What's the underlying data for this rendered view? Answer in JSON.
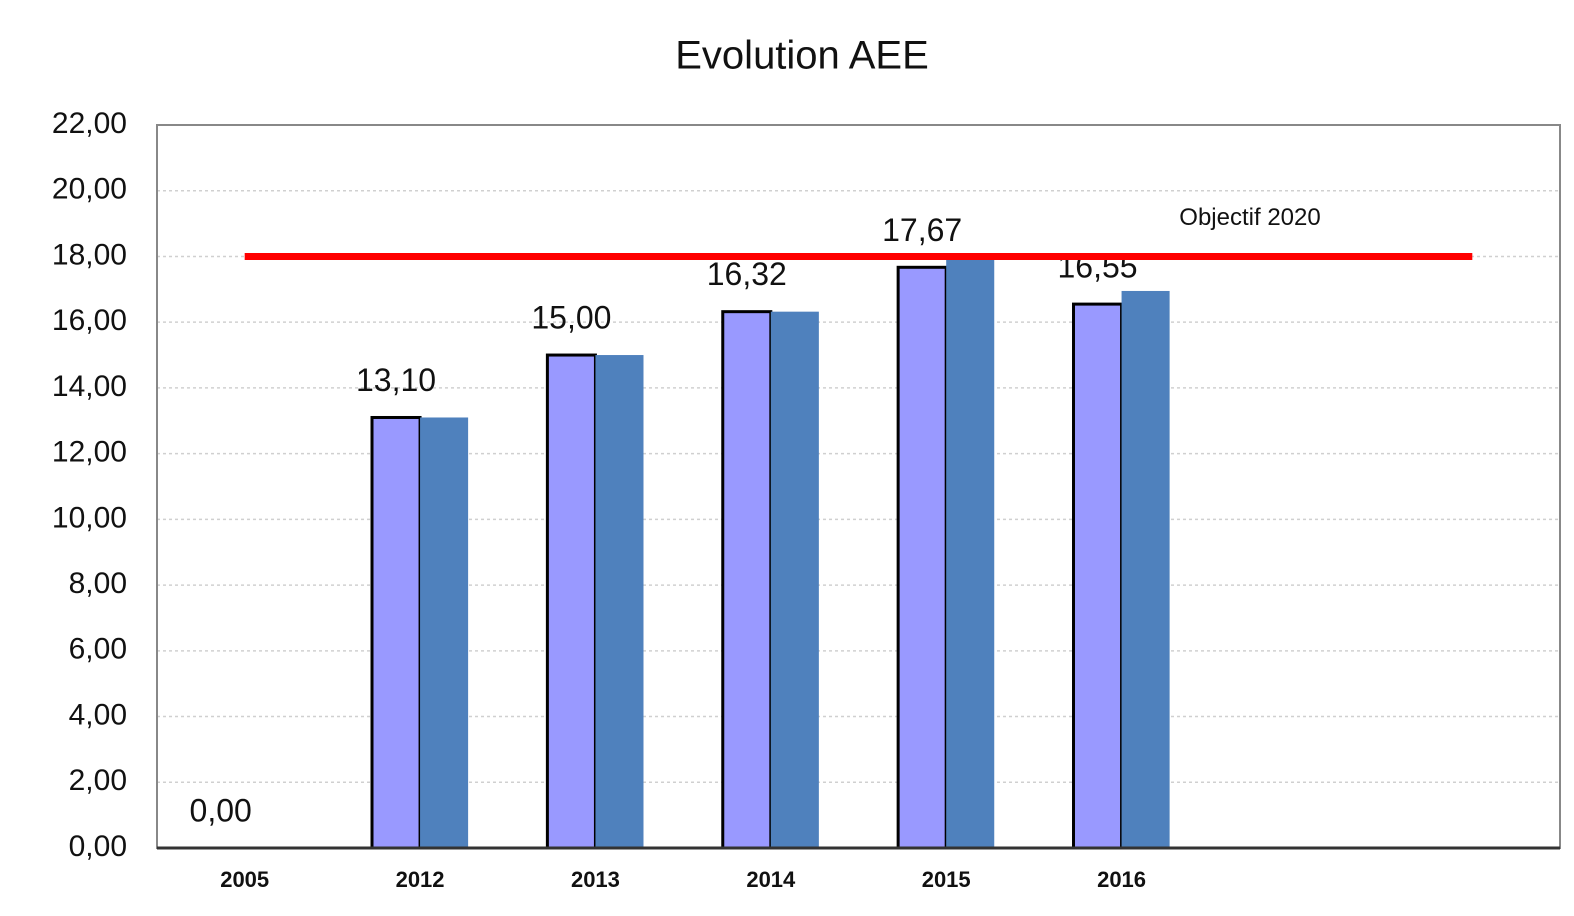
{
  "chart_data": {
    "type": "bar",
    "title": "Evolution AEE",
    "categories": [
      "2005",
      "2012",
      "2013",
      "2014",
      "2015",
      "2016",
      null,
      null
    ],
    "series": [
      {
        "color": "#9999ff",
        "values": [
          0,
          13.1,
          15.0,
          16.32,
          17.67,
          16.55,
          null,
          null
        ],
        "value_labels": [
          "0,00",
          "13,10",
          "15,00",
          "16,32",
          "17,67",
          "16,55",
          null,
          null
        ]
      },
      {
        "color": "#4f81bd",
        "values": [
          null,
          13.1,
          15.0,
          16.32,
          17.95,
          16.95,
          null,
          null
        ]
      }
    ],
    "ylim": [
      0,
      22
    ],
    "yticks": [
      {
        "value": 0,
        "label": "0,00"
      },
      {
        "value": 2,
        "label": "2,00"
      },
      {
        "value": 4,
        "label": "4,00"
      },
      {
        "value": 6,
        "label": "6,00"
      },
      {
        "value": 8,
        "label": "8,00"
      },
      {
        "value": 10,
        "label": "10,00"
      },
      {
        "value": 12,
        "label": "12,00"
      },
      {
        "value": 14,
        "label": "14,00"
      },
      {
        "value": 16,
        "label": "16,00"
      },
      {
        "value": 18,
        "label": "18,00"
      },
      {
        "value": 20,
        "label": "20,00"
      },
      {
        "value": 22,
        "label": "22,00"
      }
    ],
    "grid": true,
    "target": {
      "value": 18,
      "label": "Objectif 2020",
      "color": "#ff0000"
    }
  }
}
